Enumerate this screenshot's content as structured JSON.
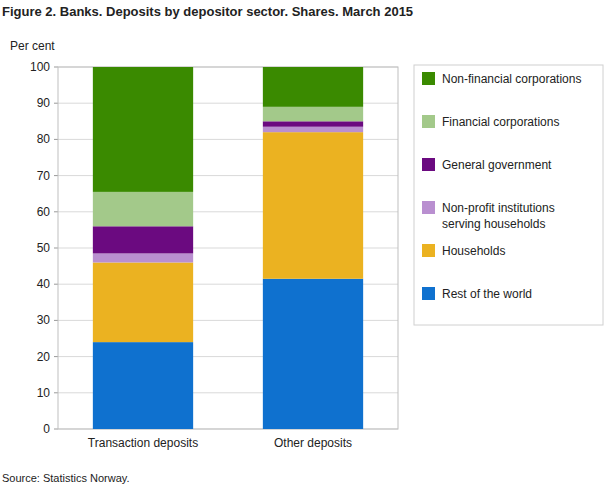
{
  "chart_data": {
    "type": "bar",
    "title": "Figure 2. Banks. Deposits by depositor sector. Shares. March 2015",
    "y_label": "Per cent",
    "source": "Source: Statistics Norway.",
    "categories": [
      "Transaction deposits",
      "Other deposits"
    ],
    "series": [
      {
        "name": "Rest of the world",
        "color": "#0f71cf",
        "values": [
          24,
          41.5
        ]
      },
      {
        "name": "Households",
        "color": "#ebb221",
        "values": [
          22,
          40.5
        ]
      },
      {
        "name": "Non-profit institutions serving households",
        "color": "#b98fd0",
        "values": [
          2.5,
          1.5
        ]
      },
      {
        "name": "General government",
        "color": "#6b0a80",
        "values": [
          7.5,
          1.5
        ]
      },
      {
        "name": "Financial corporations",
        "color": "#a3c98a",
        "values": [
          9.5,
          4
        ]
      },
      {
        "name": "Non-financial corporations",
        "color": "#3a8a00",
        "values": [
          34.5,
          11
        ]
      }
    ],
    "ylim": [
      0,
      100
    ],
    "yticks": [
      0,
      10,
      20,
      30,
      40,
      50,
      60,
      70,
      80,
      90,
      100
    ],
    "stacked": true,
    "grid": true,
    "legend": "right"
  }
}
